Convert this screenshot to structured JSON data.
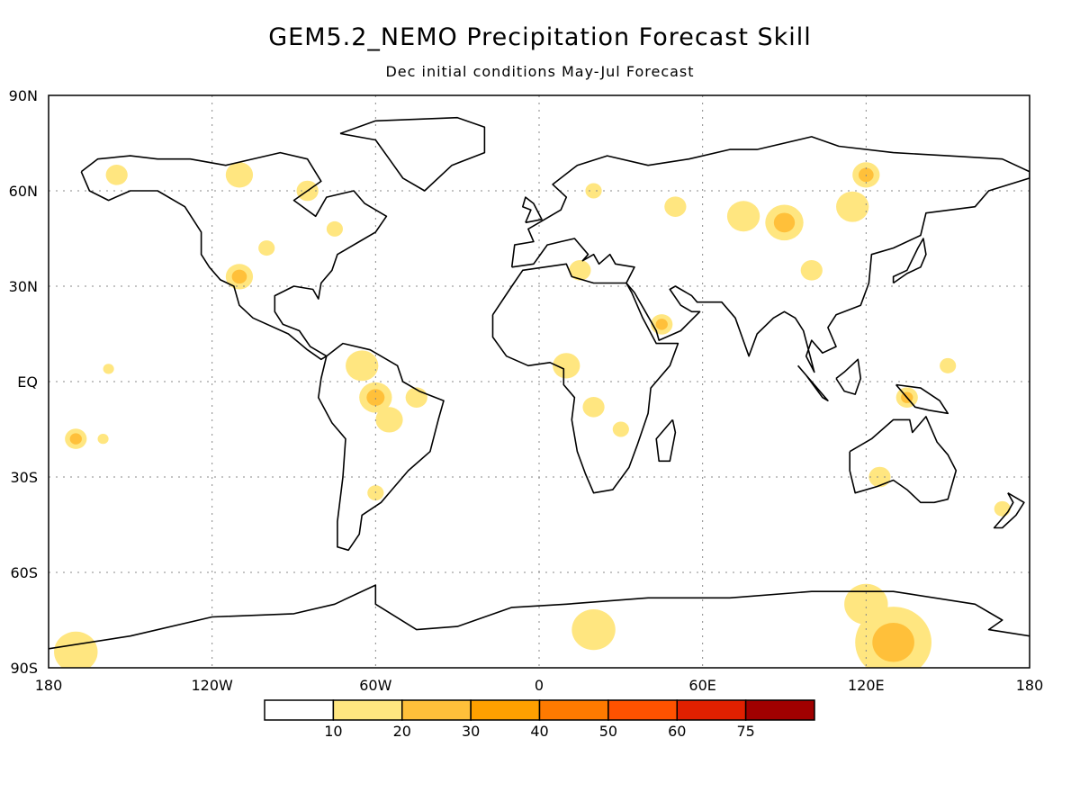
{
  "title": "GEM5.2_NEMO Precipitation Forecast Skill",
  "subtitle": "Dec initial conditions   May-Jul Forecast",
  "map": {
    "lon_range": [
      -180,
      180
    ],
    "lat_range": [
      -90,
      90
    ],
    "lat_ticks": [
      {
        "value": 90,
        "label": "90N"
      },
      {
        "value": 60,
        "label": "60N"
      },
      {
        "value": 30,
        "label": "30N"
      },
      {
        "value": 0,
        "label": "EQ"
      },
      {
        "value": -30,
        "label": "30S"
      },
      {
        "value": -60,
        "label": "60S"
      },
      {
        "value": -90,
        "label": "90S"
      }
    ],
    "lon_ticks": [
      {
        "value": -180,
        "label": "180"
      },
      {
        "value": -120,
        "label": "120W"
      },
      {
        "value": -60,
        "label": "60W"
      },
      {
        "value": 0,
        "label": "0"
      },
      {
        "value": 60,
        "label": "60E"
      },
      {
        "value": 120,
        "label": "120E"
      },
      {
        "value": 180,
        "label": "180"
      }
    ],
    "grid": true,
    "colors": {
      "c10": "#ffe680",
      "c20": "#ffc03a",
      "c30": "#ffa000"
    },
    "skill_regions": [
      {
        "lon": -110,
        "lat": 33,
        "r": 5,
        "level": 2
      },
      {
        "lon": -100,
        "lat": 42,
        "r": 3,
        "level": 1
      },
      {
        "lon": -65,
        "lat": 5,
        "r": 6,
        "level": 1
      },
      {
        "lon": -60,
        "lat": -5,
        "r": 6,
        "level": 2
      },
      {
        "lon": -55,
        "lat": -12,
        "r": 5,
        "level": 1
      },
      {
        "lon": -45,
        "lat": -5,
        "r": 4,
        "level": 1
      },
      {
        "lon": -60,
        "lat": -35,
        "r": 3,
        "level": 1
      },
      {
        "lon": -170,
        "lat": -18,
        "r": 4,
        "level": 2
      },
      {
        "lon": -160,
        "lat": -18,
        "r": 2,
        "level": 1
      },
      {
        "lon": -158,
        "lat": 4,
        "r": 2,
        "level": 1
      },
      {
        "lon": -155,
        "lat": 65,
        "r": 4,
        "level": 1
      },
      {
        "lon": -110,
        "lat": 65,
        "r": 5,
        "level": 1
      },
      {
        "lon": -85,
        "lat": 60,
        "r": 4,
        "level": 1
      },
      {
        "lon": -75,
        "lat": 48,
        "r": 3,
        "level": 1
      },
      {
        "lon": 90,
        "lat": 50,
        "r": 7,
        "level": 2
      },
      {
        "lon": 75,
        "lat": 52,
        "r": 6,
        "level": 1
      },
      {
        "lon": 115,
        "lat": 55,
        "r": 6,
        "level": 1
      },
      {
        "lon": 120,
        "lat": 65,
        "r": 5,
        "level": 2
      },
      {
        "lon": 50,
        "lat": 55,
        "r": 4,
        "level": 1
      },
      {
        "lon": 100,
        "lat": 35,
        "r": 4,
        "level": 1
      },
      {
        "lon": 45,
        "lat": 18,
        "r": 4,
        "level": 2
      },
      {
        "lon": 10,
        "lat": 5,
        "r": 5,
        "level": 1
      },
      {
        "lon": 20,
        "lat": -8,
        "r": 4,
        "level": 1
      },
      {
        "lon": 30,
        "lat": -15,
        "r": 3,
        "level": 1
      },
      {
        "lon": 15,
        "lat": 35,
        "r": 4,
        "level": 1
      },
      {
        "lon": 20,
        "lat": 60,
        "r": 3,
        "level": 1
      },
      {
        "lon": 135,
        "lat": -5,
        "r": 4,
        "level": 2
      },
      {
        "lon": 150,
        "lat": 5,
        "r": 3,
        "level": 1
      },
      {
        "lon": 125,
        "lat": -30,
        "r": 4,
        "level": 1
      },
      {
        "lon": 170,
        "lat": -40,
        "r": 3,
        "level": 1
      },
      {
        "lon": 20,
        "lat": -78,
        "r": 8,
        "level": 1
      },
      {
        "lon": 130,
        "lat": -82,
        "r": 14,
        "level": 2
      },
      {
        "lon": 120,
        "lat": -70,
        "r": 8,
        "level": 1
      },
      {
        "lon": -170,
        "lat": -85,
        "r": 8,
        "level": 1
      }
    ]
  },
  "colorbar": {
    "labels": [
      "10",
      "20",
      "30",
      "40",
      "50",
      "60",
      "75"
    ],
    "colors": [
      "#ffffff",
      "#ffe680",
      "#ffc03a",
      "#ffa000",
      "#ff7a00",
      "#ff5200",
      "#e02000",
      "#a00000"
    ]
  }
}
